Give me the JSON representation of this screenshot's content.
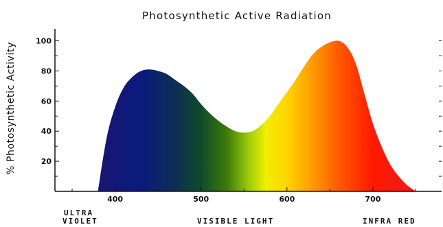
{
  "chart_data": {
    "type": "area",
    "title": "Photosynthetic Active Radiation",
    "ylabel": "% Photosynthetic Activity",
    "xlabel": "",
    "xlim": [
      330,
      780
    ],
    "ylim": [
      0,
      108
    ],
    "x_ticks": [
      400,
      500,
      600,
      700
    ],
    "y_ticks": [
      20,
      40,
      60,
      80,
      100
    ],
    "grid": false,
    "legend": "none",
    "band_labels": {
      "uv_line1": "ULTRA",
      "uv_line2": "VIOLET",
      "visible": "VISIBLE LIGHT",
      "ir": "INFRA RED"
    },
    "series": [
      {
        "x": [
          380,
          390,
          400,
          410,
          420,
          430,
          440,
          450,
          460,
          470,
          480,
          490,
          500,
          510,
          520,
          530,
          540,
          550,
          560,
          570,
          580,
          590,
          600,
          610,
          620,
          630,
          640,
          650,
          660,
          670,
          680,
          690,
          700,
          710,
          720,
          730,
          740,
          750
        ],
        "values": [
          0,
          35,
          56,
          69,
          76,
          80,
          81,
          80,
          78,
          74,
          70,
          65,
          58,
          52,
          47,
          43,
          40,
          39,
          40,
          44,
          50,
          58,
          66,
          74,
          83,
          91,
          96,
          99,
          100,
          96,
          85,
          65,
          45,
          30,
          18,
          10,
          4,
          0
        ]
      }
    ],
    "spectrum_colors": [
      {
        "nm": 380,
        "color": "#1a1670"
      },
      {
        "nm": 430,
        "color": "#0a1a7e"
      },
      {
        "nm": 470,
        "color": "#0d2e52"
      },
      {
        "nm": 500,
        "color": "#0f4a2a"
      },
      {
        "nm": 530,
        "color": "#3d7a0a"
      },
      {
        "nm": 555,
        "color": "#9acb0a"
      },
      {
        "nm": 575,
        "color": "#f0ee00"
      },
      {
        "nm": 600,
        "color": "#ffd400"
      },
      {
        "nm": 630,
        "color": "#ff9a00"
      },
      {
        "nm": 660,
        "color": "#ff5a00"
      },
      {
        "nm": 700,
        "color": "#ff1a00"
      },
      {
        "nm": 750,
        "color": "#ee1a1a"
      }
    ]
  }
}
